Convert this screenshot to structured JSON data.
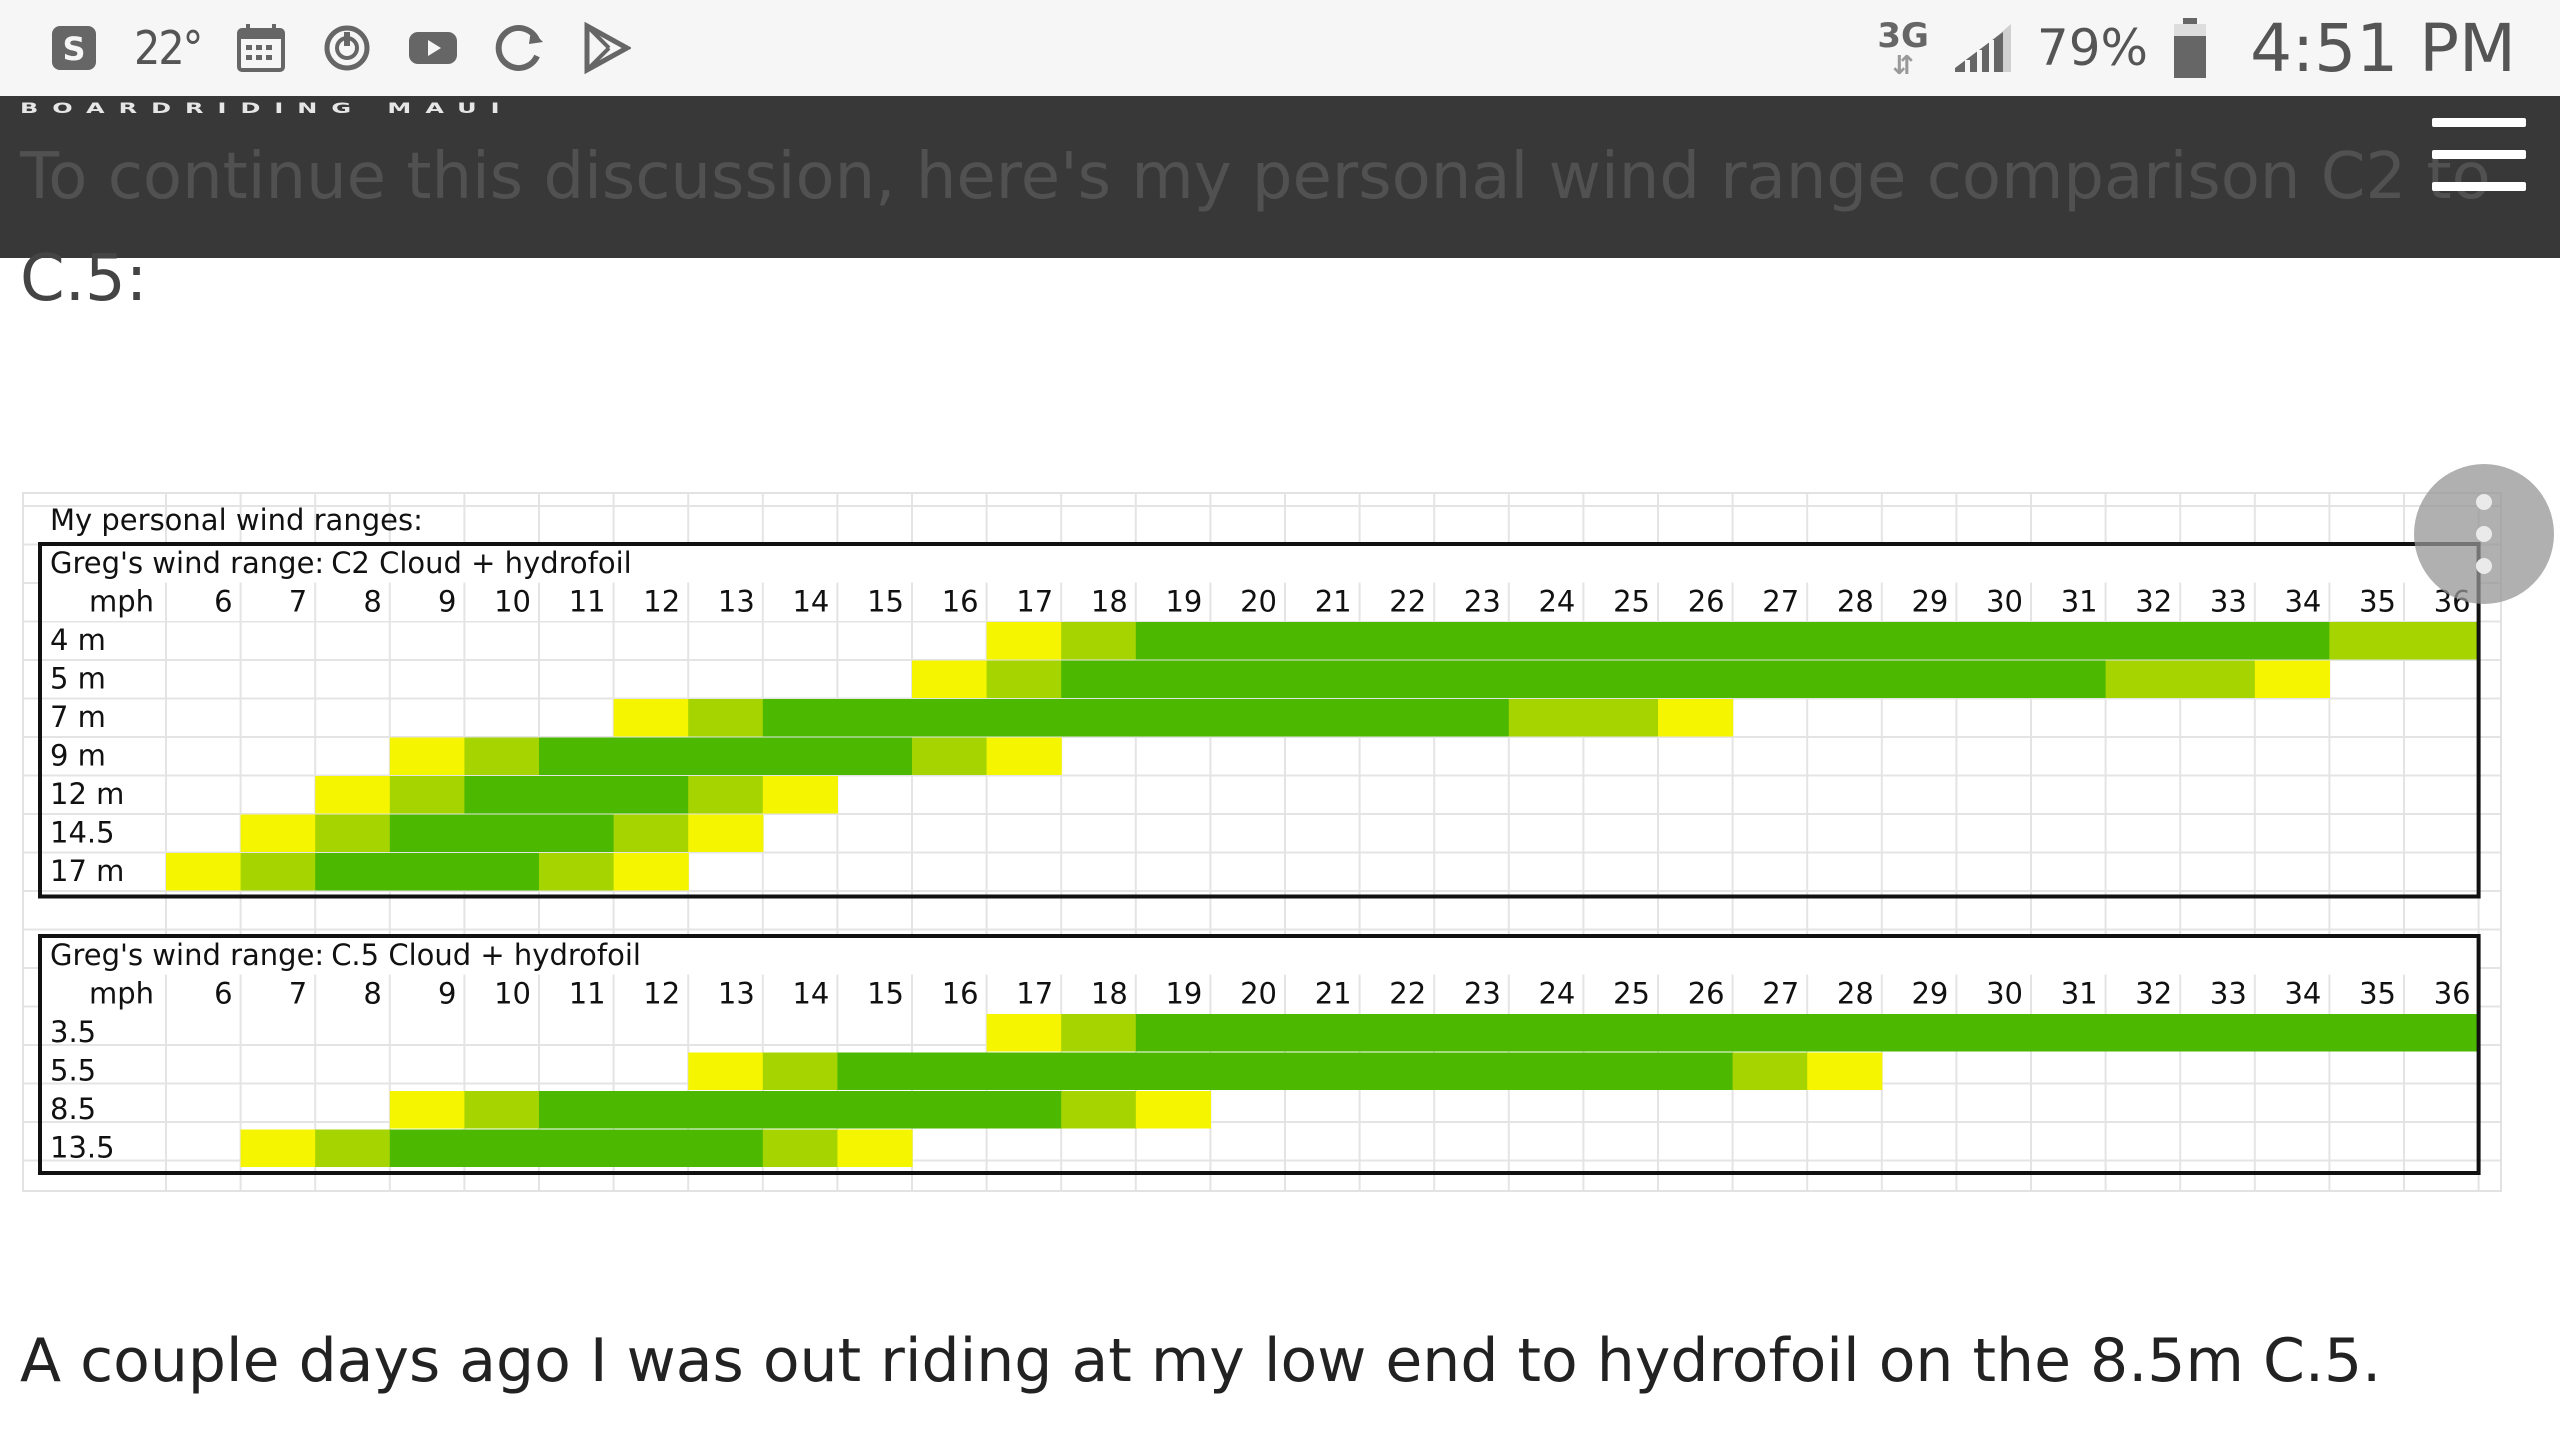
{
  "status_bar": {
    "temperature": "22°",
    "network": "3G",
    "battery": "79%",
    "time": "4:51 PM",
    "icons": [
      "skype-icon",
      "calendar-icon",
      "power-icon",
      "youtube-icon",
      "sync-icon",
      "play-store-icon",
      "signal-icon",
      "battery-icon"
    ]
  },
  "header": {
    "brand": "BOARDRIDING MAUI",
    "menu_icon": "hamburger-menu-icon"
  },
  "article": {
    "intro_line1": "To continue this discussion, here's my personal wind range comparison C2 to",
    "intro_line2": "C.5:",
    "body_line": "A couple days ago I was out riding at my low end to hydrofoil on the 8.5m C.5."
  },
  "chart_data": {
    "type": "table",
    "title": "My personal wind ranges:",
    "mph_label": "mph",
    "mph": [
      6,
      7,
      8,
      9,
      10,
      11,
      12,
      13,
      14,
      15,
      16,
      17,
      18,
      19,
      20,
      21,
      22,
      23,
      24,
      25,
      26,
      27,
      28,
      29,
      30,
      31,
      32,
      33,
      34,
      35,
      36
    ],
    "legend_colors": {
      "Y": "#f5f500",
      "L": "#a6d400",
      "G": "#4cb800"
    },
    "tables": [
      {
        "label": "Greg's wind range:",
        "kite": "C2 Cloud + hydrofoil",
        "rows": [
          {
            "size": "4 m",
            "cells": "...........YLGGGGGGGGGGGGGGGGLL"
          },
          {
            "size": "5 m",
            "cells": "..........YLGGGGGGGGGGGGGGLLY.."
          },
          {
            "size": "7 m",
            "cells": "......YLGGGGGGGGGGLLY.........."
          },
          {
            "size": "9 m",
            "cells": "...YLGGGGGLY..................."
          },
          {
            "size": "12 m",
            "cells": "..YLGGGLY......................"
          },
          {
            "size": "14.5",
            "cells": ".YLGGGLY......................."
          },
          {
            "size": "17 m",
            "cells": "YLGGGLY........................"
          }
        ]
      },
      {
        "label": "Greg's wind range:",
        "kite": "C.5 Cloud + hydrofoil",
        "rows": [
          {
            "size": "3.5",
            "cells": "...........YLGGGGGGGGGGGGGGGGGG"
          },
          {
            "size": "5.5",
            "cells": ".......YLGGGGGGGGGGGGLY........"
          },
          {
            "size": "8.5",
            "cells": "...YLGGGGGGGLY................."
          },
          {
            "size": "13.5",
            "cells": ".YLGGGGGLY....................."
          }
        ]
      }
    ]
  }
}
